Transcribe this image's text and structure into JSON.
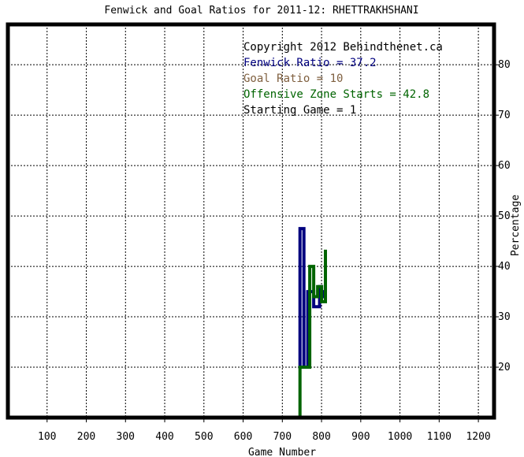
{
  "chart_data": {
    "type": "line",
    "title": "Fenwick and Goal Ratios for 2011-12: RHETTRAKHSHANI",
    "xlabel": "Game Number",
    "ylabel": "Percentage",
    "xlim": [
      0,
      1240
    ],
    "ylim": [
      10,
      88
    ],
    "x_ticks": [
      100,
      200,
      300,
      400,
      500,
      600,
      700,
      800,
      900,
      1000,
      1100,
      1200
    ],
    "y_ticks": [
      20,
      30,
      40,
      50,
      60,
      70,
      80
    ],
    "grid": true,
    "legend_position": "top-right",
    "legend": [
      {
        "text": "Copyright 2012 Behindthenet.ca",
        "color": "#000000"
      },
      {
        "text": "Fenwick Ratio = 37.2",
        "color": "#00007f"
      },
      {
        "text": "Goal Ratio = 10",
        "color": "#7f5f3f"
      },
      {
        "text": "Offensive Zone Starts = 42.8",
        "color": "#006400"
      },
      {
        "text": "Starting Game = 1",
        "color": "#000000"
      }
    ],
    "series": [
      {
        "name": "Fenwick Ratio",
        "color": "#00007f",
        "x": [
          745,
          745,
          755,
          755,
          765,
          765,
          780,
          780,
          795,
          795,
          800,
          800,
          805,
          805
        ],
        "y": [
          20,
          47.5,
          47.5,
          20,
          20,
          35,
          35,
          32,
          32,
          36,
          36,
          34,
          34,
          35
        ]
      },
      {
        "name": "Offensive Zone Starts",
        "color": "#006400",
        "x": [
          745,
          745,
          770,
          770,
          780,
          780,
          790,
          790,
          800,
          800,
          810,
          810
        ],
        "y": [
          10,
          20,
          20,
          40,
          40,
          34,
          34,
          36,
          36,
          33,
          33,
          43
        ]
      }
    ]
  }
}
